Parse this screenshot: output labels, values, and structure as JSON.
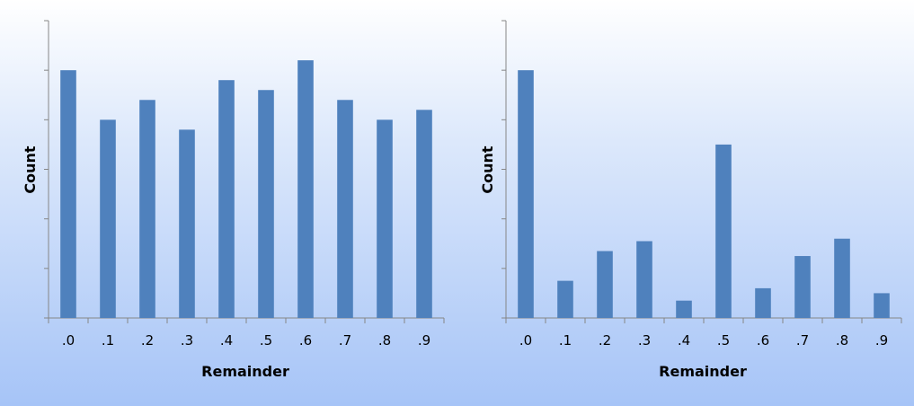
{
  "colors": {
    "bar": "#4f81bd",
    "axis": "#868686"
  },
  "chart_data": [
    {
      "type": "bar",
      "categories": [
        ".0",
        ".1",
        ".2",
        ".3",
        ".4",
        ".5",
        ".6",
        ".7",
        ".8",
        ".9"
      ],
      "values": [
        5.0,
        4.0,
        4.4,
        3.8,
        4.8,
        4.6,
        5.2,
        4.4,
        4.0,
        4.2
      ],
      "xlabel": "Remainder",
      "ylabel": "Count",
      "ylim": [
        0,
        6
      ],
      "y_tick_labels": false,
      "grid": false,
      "legend": "none"
    },
    {
      "type": "bar",
      "categories": [
        ".0",
        ".1",
        ".2",
        ".3",
        ".4",
        ".5",
        ".6",
        ".7",
        ".8",
        ".9"
      ],
      "values": [
        5.0,
        0.75,
        1.35,
        1.55,
        0.35,
        3.5,
        0.6,
        1.25,
        1.6,
        0.5
      ],
      "xlabel": "Remainder",
      "ylabel": "Count",
      "ylim": [
        0,
        6
      ],
      "y_tick_labels": false,
      "grid": false,
      "legend": "none"
    }
  ]
}
